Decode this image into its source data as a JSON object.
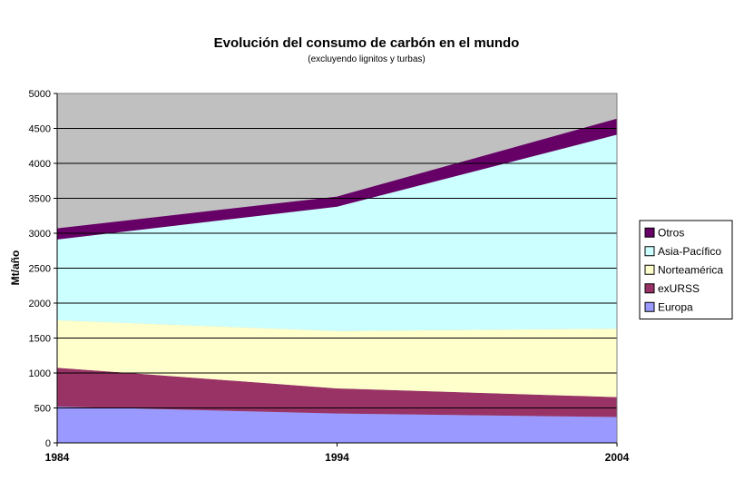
{
  "chart_data": {
    "type": "area",
    "stacked": true,
    "title": "Evolución del consumo de carbón en el mundo",
    "subtitle": "(excluyendo lignitos y turbas)",
    "ylabel": "Mt/año",
    "xlabel": "",
    "x": [
      "1984",
      "1994",
      "2004"
    ],
    "ylim": [
      0,
      5000
    ],
    "y_ticks": [
      0,
      500,
      1000,
      1500,
      2000,
      2500,
      3000,
      3500,
      4000,
      4500,
      5000
    ],
    "grid": true,
    "legend_position": "right",
    "plot_background": "#c0c0c0",
    "series": [
      {
        "name": "Europa",
        "values": [
          520,
          420,
          370
        ],
        "color": "#9999ff"
      },
      {
        "name": "exURSS",
        "values": [
          555,
          360,
          285
        ],
        "color": "#993366"
      },
      {
        "name": "Norteamérica",
        "values": [
          680,
          820,
          980
        ],
        "color": "#ffffcc"
      },
      {
        "name": "Asia-Pacífico",
        "values": [
          1155,
          1780,
          2775
        ],
        "color": "#ccffff"
      },
      {
        "name": "Otros",
        "values": [
          160,
          145,
          230
        ],
        "color": "#660066"
      }
    ]
  }
}
